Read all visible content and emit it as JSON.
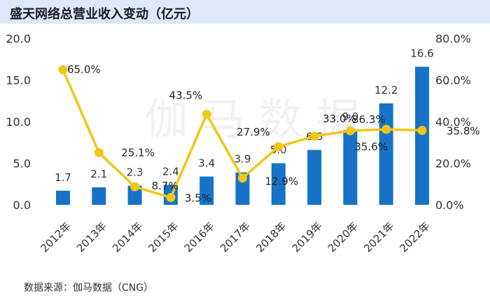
{
  "title": "盛天网络总营业收入变动（亿元）",
  "source": "数据来源：伽马数据（CNG）",
  "colors": {
    "bar": "#1673c8",
    "line": "#f2c615",
    "title_bg": "#dbe9fa"
  },
  "chart_data": {
    "type": "bar",
    "categories": [
      "2012年",
      "2013年",
      "2014年",
      "2015年",
      "2016年",
      "2017年",
      "2018年",
      "2019年",
      "2020年",
      "2021年",
      "2022年"
    ],
    "series": [
      {
        "values": [
          1.7,
          2.1,
          2.3,
          2.4,
          3.4,
          3.9,
          5.0,
          6.6,
          9.0,
          12.2,
          16.6
        ],
        "labels": [
          "1.7",
          "2.1",
          "2.3",
          "2.4",
          "3.4",
          "3.9",
          "5.0",
          "6.6",
          "9.0",
          "12.2",
          "16.6"
        ]
      },
      {
        "type": "line",
        "axis": "right",
        "values": [
          65.0,
          25.1,
          8.7,
          3.5,
          43.5,
          12.9,
          27.9,
          33.0,
          35.6,
          36.3,
          35.8
        ],
        "labels": [
          "65.0%",
          "25.1%",
          "8.7%",
          "3.5%",
          "43.5%",
          "12.9%",
          "27.9%",
          "33.0%",
          "35.6%",
          "36.3%",
          "35.8%"
        ]
      }
    ],
    "y_left": {
      "range": [
        0,
        20
      ],
      "ticks": [
        "0.0",
        "5.0",
        "10.0",
        "15.0",
        "20.0"
      ]
    },
    "y_right": {
      "range": [
        0,
        80
      ],
      "ticks": [
        "0.0%",
        "20.0%",
        "40.0%",
        "60.0%",
        "80.0%"
      ]
    },
    "grid": false,
    "legend": "none"
  }
}
